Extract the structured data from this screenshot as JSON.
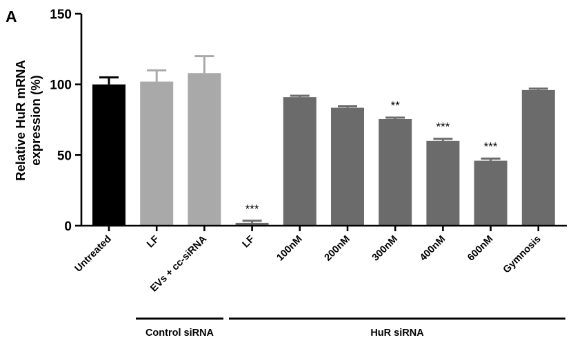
{
  "chart_data": {
    "type": "bar",
    "panel_label": "A",
    "ylabel_line1": "Relative HuR mRNA",
    "ylabel_line2": "expression (%)",
    "xlabel": "",
    "ylim": [
      0,
      150
    ],
    "yticks": [
      "0",
      "50",
      "100",
      "150"
    ],
    "categories": [
      "Untreated",
      "LF",
      "EVs + cc-siRNA",
      "LF",
      "100nM",
      "200nM",
      "300nM",
      "400nM",
      "600nM",
      "Gymnosis"
    ],
    "values": [
      100,
      102,
      108,
      2,
      91,
      83.5,
      75.5,
      60,
      46,
      96
    ],
    "errors": [
      5,
      8,
      12,
      1.5,
      1,
      1,
      1,
      1.5,
      1.5,
      1
    ],
    "significance": [
      "",
      "",
      "",
      "***",
      "",
      "",
      "**",
      "***",
      "***",
      ""
    ],
    "bar_colors": [
      "#000000",
      "#a9a9a9",
      "#a9a9a9",
      "#6b6b6b",
      "#6b6b6b",
      "#6b6b6b",
      "#6b6b6b",
      "#6b6b6b",
      "#6b6b6b",
      "#6b6b6b"
    ],
    "groups": [
      {
        "label": "Control siRNA",
        "from": 1,
        "to": 2
      },
      {
        "label": "HuR siRNA",
        "from": 3,
        "to": 9
      }
    ],
    "grid": false,
    "legend": "none"
  }
}
